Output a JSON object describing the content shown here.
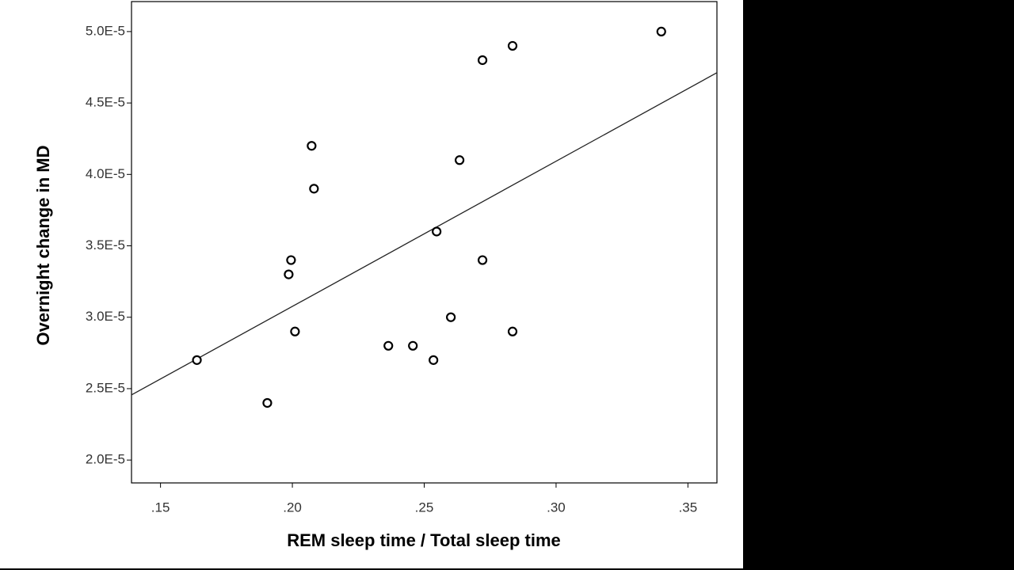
{
  "chart_data": {
    "type": "scatter",
    "x_label": "REM sleep time / Total sleep time",
    "y_label": "Overnight change in MD",
    "x": [
      0.1638,
      0.1905,
      0.1986,
      0.1995,
      0.201,
      0.2073,
      0.2082,
      0.2364,
      0.2457,
      0.2535,
      0.2547,
      0.2601,
      0.2634,
      0.2721,
      0.2721,
      0.2835,
      0.2835,
      0.3399
    ],
    "values": [
      2.7e-05,
      2.4e-05,
      3.3e-05,
      3.4e-05,
      2.9e-05,
      4.2e-05,
      3.9e-05,
      2.8e-05,
      2.8e-05,
      2.7e-05,
      3.6e-05,
      3e-05,
      4.1e-05,
      4.8e-05,
      3.4e-05,
      4.9e-05,
      2.9e-05,
      5e-05
    ],
    "color": "#000000",
    "fit_line": {
      "x": [
        0.139,
        0.361
      ],
      "y": [
        2.456e-05,
        4.712e-05
      ]
    },
    "xlim": [
      0.139,
      0.361
    ],
    "ylim": [
      1.84e-05,
      5.21e-05
    ],
    "xticks": [
      {
        "value": 0.15,
        "label": ".15"
      },
      {
        "value": 0.2,
        "label": ".20"
      },
      {
        "value": 0.25,
        "label": ".25"
      },
      {
        "value": 0.3,
        "label": ".30"
      },
      {
        "value": 0.35,
        "label": ".35"
      }
    ],
    "yticks": [
      {
        "value": 2e-05,
        "label": "2.0E-5"
      },
      {
        "value": 2.5e-05,
        "label": "2.5E-5"
      },
      {
        "value": 3e-05,
        "label": "3.0E-5"
      },
      {
        "value": 3.5e-05,
        "label": "3.5E-5"
      },
      {
        "value": 4e-05,
        "label": "4.0E-5"
      },
      {
        "value": 4.5e-05,
        "label": "4.5E-5"
      },
      {
        "value": 5e-05,
        "label": "5.0E-5"
      }
    ],
    "grid": false
  }
}
